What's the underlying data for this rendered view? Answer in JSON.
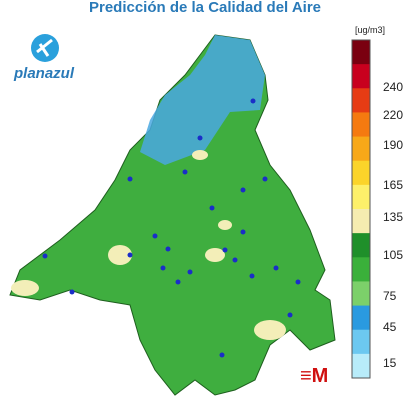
{
  "header": {
    "title": "Predicción de la Calidad del Aire",
    "brand": "planazul"
  },
  "legend": {
    "unit": "[ug/m3]",
    "ticks": [
      240,
      220,
      190,
      165,
      135,
      105,
      75,
      45,
      15
    ],
    "colors": [
      "#7a0010",
      "#c8001e",
      "#e63c14",
      "#f57a10",
      "#f8a818",
      "#fbd42a",
      "#fdf06a",
      "#f5ecb0",
      "#1f8f2a",
      "#3ab03a",
      "#7cd06a",
      "#2a9ae0",
      "#6cc8f0",
      "#b8ecfa"
    ]
  }
}
